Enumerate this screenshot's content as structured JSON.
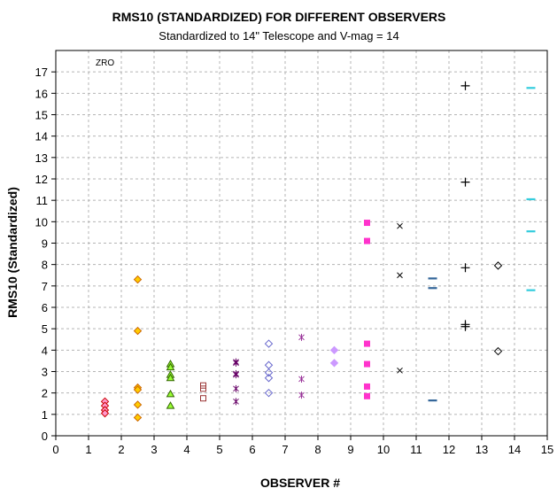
{
  "chart_data": {
    "type": "scatter",
    "title": "RMS10 (STANDARDIZED) FOR DIFFERENT OBSERVERS",
    "subtitle": "Standardized to 14\" Telescope and V-mag = 14",
    "xlabel": "OBSERVER #",
    "ylabel": "RMS10 (Standardized)",
    "xlim": [
      0,
      15
    ],
    "ylim": [
      0,
      18
    ],
    "xticks": [
      0,
      1,
      2,
      3,
      4,
      5,
      6,
      7,
      8,
      9,
      10,
      11,
      12,
      13,
      14,
      15
    ],
    "yticks": [
      0,
      1,
      2,
      3,
      4,
      5,
      6,
      7,
      8,
      9,
      10,
      11,
      12,
      13,
      14,
      15,
      16,
      17
    ],
    "grid": true,
    "annotation": "ZRO",
    "series": [
      {
        "marker": "diamond-filled",
        "color": "#cc0000",
        "fill": "#ff99cc",
        "points": [
          [
            1.5,
            1.6
          ],
          [
            1.5,
            1.4
          ],
          [
            1.5,
            1.2
          ],
          [
            1.5,
            1.05
          ]
        ]
      },
      {
        "marker": "diamond-filled",
        "color": "#cc6600",
        "fill": "#ffcc00",
        "points": [
          [
            2.5,
            7.3
          ],
          [
            2.5,
            4.9
          ],
          [
            2.5,
            2.25
          ],
          [
            2.5,
            2.15
          ],
          [
            2.5,
            1.45
          ],
          [
            2.5,
            0.85
          ]
        ]
      },
      {
        "marker": "triangle",
        "color": "#336600",
        "fill": "#99ff33",
        "points": [
          [
            3.5,
            3.35
          ],
          [
            3.5,
            3.2
          ],
          [
            3.5,
            2.85
          ],
          [
            3.5,
            2.7
          ],
          [
            3.5,
            1.95
          ],
          [
            3.5,
            1.4
          ]
        ]
      },
      {
        "marker": "square-open",
        "color": "#993333",
        "fill": "none",
        "points": [
          [
            4.5,
            2.35
          ],
          [
            4.5,
            2.2
          ],
          [
            4.5,
            1.75
          ]
        ]
      },
      {
        "marker": "star",
        "color": "#660066",
        "fill": "none",
        "points": [
          [
            5.5,
            3.45
          ],
          [
            5.5,
            3.4
          ],
          [
            5.5,
            2.9
          ],
          [
            5.5,
            2.85
          ],
          [
            5.5,
            2.2
          ],
          [
            5.5,
            1.6
          ]
        ]
      },
      {
        "marker": "diamond-open",
        "color": "#6666cc",
        "fill": "none",
        "points": [
          [
            6.5,
            4.3
          ],
          [
            6.5,
            3.3
          ],
          [
            6.5,
            2.95
          ],
          [
            6.5,
            2.7
          ],
          [
            6.5,
            2.0
          ]
        ]
      },
      {
        "marker": "star",
        "color": "#993399",
        "fill": "none",
        "points": [
          [
            7.5,
            4.6
          ],
          [
            7.5,
            2.65
          ],
          [
            7.5,
            1.9
          ]
        ]
      },
      {
        "marker": "diamond-filled",
        "color": "#cc99ff",
        "fill": "#cc99ff",
        "points": [
          [
            8.5,
            4.0
          ],
          [
            8.5,
            3.4
          ]
        ]
      },
      {
        "marker": "square-filled",
        "color": "#ff33cc",
        "fill": "#ff33cc",
        "points": [
          [
            9.5,
            9.95
          ],
          [
            9.5,
            9.1
          ],
          [
            9.5,
            4.3
          ],
          [
            9.5,
            3.35
          ],
          [
            9.5,
            2.3
          ],
          [
            9.5,
            1.85
          ]
        ]
      },
      {
        "marker": "x",
        "color": "#000000",
        "fill": "none",
        "points": [
          [
            10.5,
            9.8
          ],
          [
            10.5,
            7.5
          ],
          [
            10.5,
            3.05
          ]
        ]
      },
      {
        "marker": "dash",
        "color": "#336699",
        "fill": "none",
        "points": [
          [
            11.5,
            7.35
          ],
          [
            11.5,
            6.9
          ],
          [
            11.5,
            1.65
          ]
        ]
      },
      {
        "marker": "plus",
        "color": "#000000",
        "fill": "none",
        "points": [
          [
            12.5,
            16.35
          ],
          [
            12.5,
            11.85
          ],
          [
            12.5,
            7.85
          ],
          [
            12.5,
            5.2
          ],
          [
            12.5,
            5.1
          ]
        ]
      },
      {
        "marker": "diamond-open",
        "color": "#000000",
        "fill": "none",
        "points": [
          [
            13.5,
            7.95
          ],
          [
            13.5,
            3.95
          ]
        ]
      },
      {
        "marker": "dash",
        "color": "#33ccdd",
        "fill": "none",
        "points": [
          [
            14.5,
            16.25
          ],
          [
            14.5,
            11.05
          ],
          [
            14.5,
            9.55
          ],
          [
            14.5,
            6.8
          ]
        ]
      }
    ]
  }
}
